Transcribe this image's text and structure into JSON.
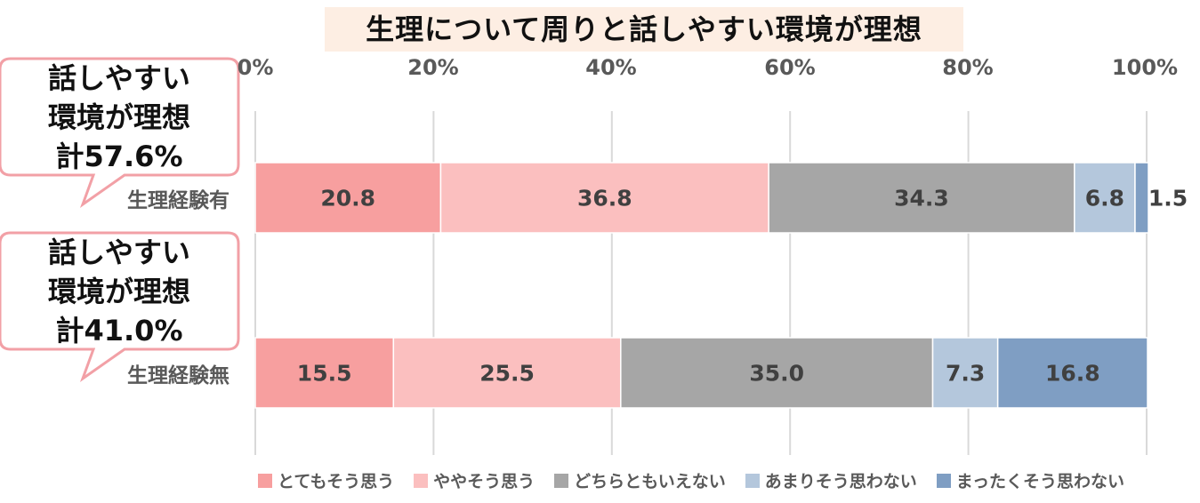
{
  "chart_data": {
    "type": "bar",
    "orientation": "horizontal",
    "stacked": true,
    "percent_axis": true,
    "title": "生理について周りと話しやすい環境が理想",
    "xlim": [
      0,
      100
    ],
    "x_ticks": [
      "0%",
      "20%",
      "40%",
      "60%",
      "80%",
      "100%"
    ],
    "grid": true,
    "legend_position": "bottom",
    "categories": [
      "生理経験有",
      "生理経験無"
    ],
    "series": [
      {
        "name": "とてもそう思う",
        "color": "#f79f9f",
        "values": [
          20.8,
          15.5
        ]
      },
      {
        "name": "ややそう思う",
        "color": "#fbbfbf",
        "values": [
          36.8,
          25.5
        ]
      },
      {
        "name": "どちらともいえない",
        "color": "#a6a6a6",
        "values": [
          34.3,
          35.0
        ]
      },
      {
        "name": "あまりそう思わない",
        "color": "#b4c7dc",
        "values": [
          6.8,
          7.3
        ]
      },
      {
        "name": "まったくそう思わない",
        "color": "#7f9ec3",
        "values": [
          1.5,
          16.8
        ]
      }
    ],
    "callouts": [
      {
        "line1": "話しやすい",
        "line2": "環境が理想",
        "line3": "計57.6%"
      },
      {
        "line1": "話しやすい",
        "line2": "環境が理想",
        "line3": "計41.0%"
      }
    ]
  },
  "colors": {
    "title_background": "#fdeee3",
    "callout_border": "#f2a0a6",
    "gridline": "#d9d9d9"
  }
}
